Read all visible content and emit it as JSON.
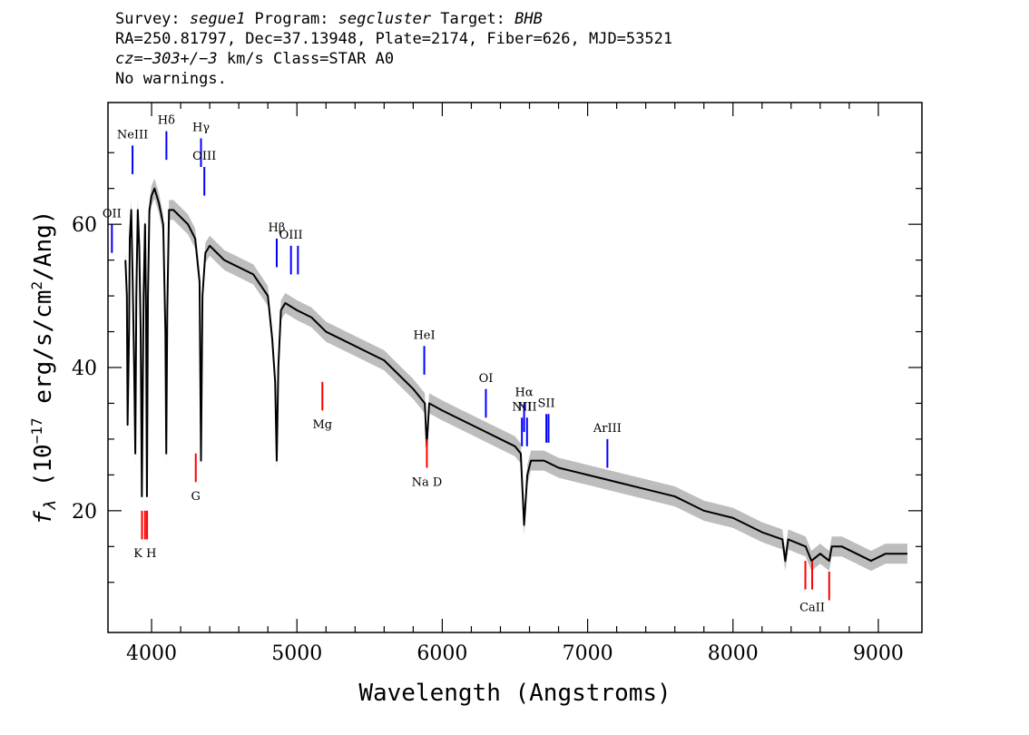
{
  "header": {
    "line1": {
      "survey_label": "Survey: ",
      "survey": "segue1",
      "program_label": " Program: ",
      "program": "segcluster",
      "target_label": " Target: ",
      "target": "BHB"
    },
    "line2": "RA=250.81797, Dec=37.13948, Plate=2174, Fiber=626, MJD=53521",
    "line3": {
      "cz": "cz=−303+/−3",
      "rest": " km/s Class=STAR A0"
    },
    "line4": "No warnings."
  },
  "chart_data": {
    "type": "line",
    "xlabel": "Wavelength (Angstroms)",
    "ylabel_parts": {
      "f": "f",
      "sub": "λ",
      "pre": " (10",
      "exp1": "−17",
      "mid": " erg/s/cm",
      "exp2": "2",
      "post": "/Ang)"
    },
    "xlim": [
      3700,
      9300
    ],
    "ylim": [
      3,
      77
    ],
    "x_ticks": [
      4000,
      5000,
      6000,
      7000,
      8000,
      9000
    ],
    "y_ticks": [
      20,
      40,
      60
    ],
    "colors": {
      "flux": "#000000",
      "error_band": "#bdbdbd",
      "emission_line": "#0000ff",
      "absorption_line": "#ff0000"
    },
    "series": [
      {
        "x": [
          3820,
          3830,
          3835,
          3845,
          3850,
          3860,
          3870,
          3880,
          3888,
          3895,
          3905,
          3915,
          3925,
          3933,
          3945,
          3955,
          3962,
          3968,
          3975,
          3985,
          4000,
          4020,
          4050,
          4080,
          4095,
          4101,
          4108,
          4120,
          4150,
          4200,
          4250,
          4300,
          4330,
          4340,
          4350,
          4370,
          4400,
          4450,
          4500,
          4600,
          4700,
          4800,
          4830,
          4850,
          4861,
          4872,
          4890,
          4920,
          5000,
          5100,
          5200,
          5300,
          5400,
          5500,
          5600,
          5700,
          5800,
          5880,
          5893,
          5910,
          6000,
          6100,
          6200,
          6300,
          6400,
          6500,
          6540,
          6563,
          6585,
          6610,
          6700,
          6800,
          7000,
          7200,
          7400,
          7600,
          7800,
          8000,
          8200,
          8340,
          8360,
          8380,
          8500,
          8540,
          8600,
          8662,
          8680,
          8750,
          8850,
          8950,
          9050,
          9200
        ],
        "y": [
          55,
          50,
          32,
          45,
          58,
          62,
          52,
          40,
          28,
          50,
          62,
          57,
          45,
          22,
          50,
          60,
          48,
          22,
          50,
          62,
          64,
          65,
          63,
          60,
          45,
          28,
          48,
          62,
          62,
          61,
          60,
          58,
          52,
          27,
          50,
          56,
          57,
          56,
          55,
          54,
          53,
          50,
          44,
          38,
          27,
          40,
          48,
          49,
          48,
          47,
          45,
          44,
          43,
          42,
          41,
          39,
          37,
          35,
          29,
          35,
          34,
          33,
          32,
          31,
          30,
          29,
          28,
          18,
          25,
          27,
          27,
          26,
          25,
          24,
          23,
          22,
          20,
          19,
          17,
          16,
          13,
          16,
          15,
          13,
          14,
          13,
          15,
          15,
          14,
          13,
          14,
          14
        ]
      }
    ],
    "line_markers": [
      {
        "label": "NeIII",
        "x": 3869,
        "color": "blue",
        "y_from": 67,
        "y_to": 71,
        "label_y": 72.5
      },
      {
        "label": "Hδ",
        "x": 4102,
        "color": "blue",
        "y_from": 69,
        "y_to": 73,
        "label_y": 74.5
      },
      {
        "label": "Hγ",
        "x": 4340,
        "color": "blue",
        "y_from": 68,
        "y_to": 72,
        "label_y": 73.5
      },
      {
        "label": "OIII",
        "x": 4363,
        "color": "blue",
        "y_from": 64,
        "y_to": 68,
        "label_y": 69.5
      },
      {
        "label": "OII",
        "x": 3727,
        "color": "blue",
        "y_from": 56,
        "y_to": 60,
        "label_y": 61.5
      },
      {
        "label": "Hβ",
        "x": 4861,
        "color": "blue",
        "y_from": 54,
        "y_to": 58,
        "label_y": 59.5
      },
      {
        "label": "OIII",
        "x": 4959,
        "color": "blue",
        "y_from": 53,
        "y_to": 57,
        "label_y": 58.5
      },
      {
        "label": "",
        "x": 5007,
        "color": "blue",
        "y_from": 53,
        "y_to": 57,
        "label_y": 58.5
      },
      {
        "label": "HeI",
        "x": 5876,
        "color": "blue",
        "y_from": 39,
        "y_to": 43,
        "label_y": 44.5
      },
      {
        "label": "OI",
        "x": 6300,
        "color": "blue",
        "y_from": 33,
        "y_to": 37,
        "label_y": 38.5
      },
      {
        "label": "NII",
        "x": 6548,
        "color": "blue",
        "y_from": 29,
        "y_to": 33,
        "label_y": 34.5
      },
      {
        "label": "Hα",
        "x": 6563,
        "color": "blue",
        "y_from": 31,
        "y_to": 35,
        "label_y": 36.5
      },
      {
        "label": "NII",
        "x": 6583,
        "color": "blue",
        "y_from": 29,
        "y_to": 33,
        "label_y": 34.5
      },
      {
        "label": "SII",
        "x": 6716,
        "color": "blue",
        "y_from": 29.5,
        "y_to": 33.5,
        "label_y": 35
      },
      {
        "label": "",
        "x": 6731,
        "color": "blue",
        "y_from": 29.5,
        "y_to": 33.5,
        "label_y": 35
      },
      {
        "label": "ArIII",
        "x": 7136,
        "color": "blue",
        "y_from": 26,
        "y_to": 30,
        "label_y": 31.5
      },
      {
        "label": "",
        "x": 3934,
        "color": "red",
        "y_from": 16,
        "y_to": 20,
        "label_y": 14
      },
      {
        "label": "K H",
        "x": 3955,
        "color": "red",
        "y_from": 16,
        "y_to": 20,
        "label_y": 14
      },
      {
        "label": "",
        "x": 3969,
        "color": "red",
        "y_from": 16,
        "y_to": 20,
        "label_y": 14
      },
      {
        "label": "G",
        "x": 4304,
        "color": "red",
        "y_from": 24,
        "y_to": 28,
        "label_y": 22
      },
      {
        "label": "Mg",
        "x": 5175,
        "color": "red",
        "y_from": 34,
        "y_to": 38,
        "label_y": 32
      },
      {
        "label": "Na D",
        "x": 5894,
        "color": "red",
        "y_from": 26,
        "y_to": 30,
        "label_y": 24
      },
      {
        "label": "",
        "x": 8498,
        "color": "red",
        "y_from": 9,
        "y_to": 13,
        "label_y": 6.5
      },
      {
        "label": "CaII",
        "x": 8545,
        "color": "red",
        "y_from": 9,
        "y_to": 13,
        "label_y": 6.5
      },
      {
        "label": "",
        "x": 8662,
        "color": "red",
        "y_from": 7.5,
        "y_to": 11.5,
        "label_y": 6.5
      }
    ]
  }
}
